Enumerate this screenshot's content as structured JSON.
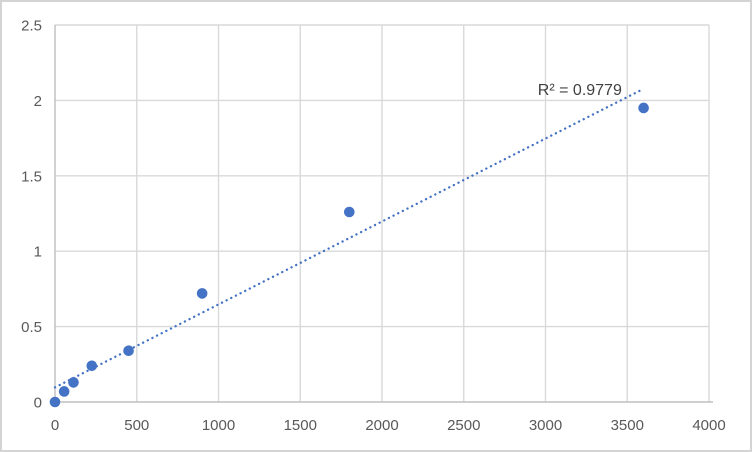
{
  "chart_data": {
    "type": "scatter",
    "title": "",
    "xlabel": "",
    "ylabel": "",
    "x": [
      0,
      56,
      113,
      225,
      450,
      900,
      1800,
      3600
    ],
    "y": [
      0,
      0.07,
      0.13,
      0.24,
      0.34,
      0.72,
      1.26,
      1.95
    ],
    "xlim": [
      0,
      4000
    ],
    "ylim": [
      0,
      2.5
    ],
    "x_tick_values": [
      0,
      500,
      1000,
      1500,
      2000,
      2500,
      3000,
      3500,
      4000
    ],
    "y_tick_values": [
      0,
      0.5,
      1,
      1.5,
      2,
      2.5
    ],
    "x_ticks": [
      "0",
      "500",
      "1000",
      "1500",
      "2000",
      "2500",
      "3000",
      "3500",
      "4000"
    ],
    "y_ticks": [
      "0",
      "0.5",
      "1",
      "1.5",
      "2",
      "2.5"
    ],
    "grid": true,
    "legend": "none",
    "colors": {
      "marker": "#4472c4",
      "trendline": "#4472c4",
      "gridline": "#d9d9d9",
      "axis_line": "#bfbfbf",
      "tick_label": "#595959",
      "r2_label": "#404040",
      "background": "#ffffff",
      "outer_border": "#d4d4d4"
    },
    "trendline": {
      "fit": "linear",
      "style": "dotted",
      "slope": 0.00055,
      "intercept": 0.097,
      "x_start": 0,
      "x_end": 3600,
      "label": "R² = 0.9779",
      "label_anchor_x": 3210,
      "label_anchor_y": 2.06
    }
  }
}
